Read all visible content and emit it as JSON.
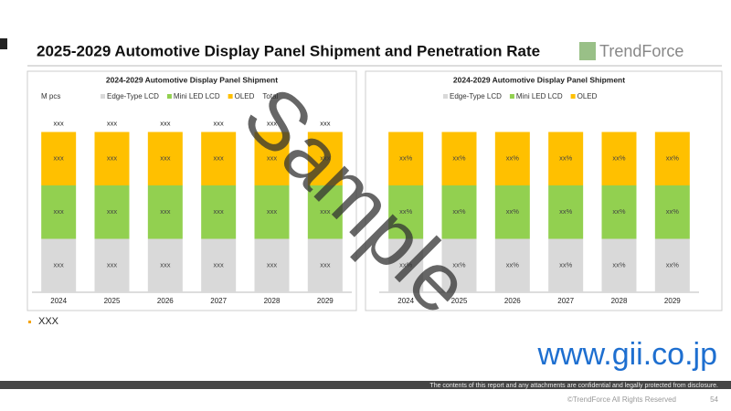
{
  "header": {
    "title": "2025-2029 Automotive Display Panel Shipment and Penetration Rate",
    "logo": "TrendForce"
  },
  "left_chart": {
    "title": "2024-2029 Automotive Display Panel Shipment",
    "unit": "M pcs",
    "categories": [
      "2024",
      "2025",
      "2026",
      "2027",
      "2028",
      "2029"
    ],
    "segments": [
      {
        "name": "Edge-Type LCD",
        "color": "#d9d9d9",
        "labels": [
          "xxx",
          "xxx",
          "xxx",
          "xxx",
          "xxx",
          "xxx"
        ]
      },
      {
        "name": "Mini LED LCD",
        "color": "#92d050",
        "labels": [
          "xxx",
          "xxx",
          "xxx",
          "xxx",
          "xxx",
          "xxx"
        ]
      },
      {
        "name": "OLED",
        "color": "#ffc000",
        "labels": [
          "xxx",
          "xxx",
          "xxx",
          "xxx",
          "xxx",
          "xxx"
        ]
      }
    ],
    "total": {
      "name": "Total",
      "labels": [
        "xxx",
        "xxx",
        "xxx",
        "xxx",
        "xxx",
        "xxx"
      ]
    }
  },
  "right_chart": {
    "title": "2024-2029 Automotive Display Panel Shipment",
    "categories": [
      "2024",
      "2025",
      "2026",
      "2027",
      "2028",
      "2029"
    ],
    "segments": [
      {
        "name": "Edge-Type LCD",
        "color": "#d9d9d9",
        "labels": [
          "xx%",
          "xx%",
          "xx%",
          "xx%",
          "xx%",
          "xx%"
        ]
      },
      {
        "name": "Mini LED LCD",
        "color": "#92d050",
        "labels": [
          "xx%",
          "xx%",
          "xx%",
          "xx%",
          "xx%",
          "xx%"
        ]
      },
      {
        "name": "OLED",
        "color": "#ffc000",
        "labels": [
          "xx%",
          "xx%",
          "xx%",
          "xx%",
          "xx%",
          "xx%"
        ]
      }
    ]
  },
  "bullet": "XXX",
  "watermark": {
    "sample": "Sample",
    "site": "www.gii.co.jp"
  },
  "footer": {
    "disclaimer": "The contents of this report and any attachments are confidential and legally protected from disclosure.",
    "copyright": "©TrendForce All Rights Reserved",
    "page": "54"
  }
}
